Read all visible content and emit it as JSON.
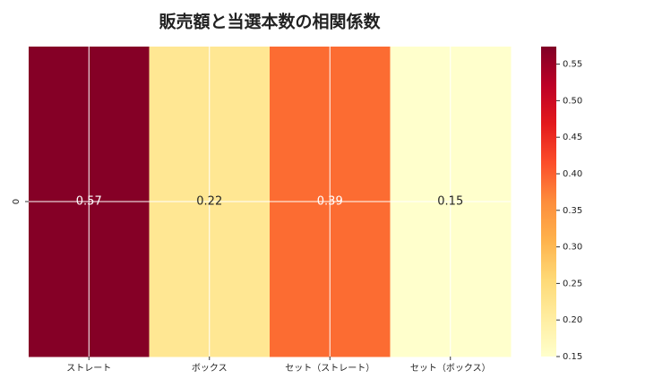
{
  "chart_data": {
    "type": "heatmap",
    "title": "販売額と当選本数の相関係数",
    "categories": [
      "ストレート",
      "ボックス",
      "セット（ストレート）",
      "セット（ボックス）"
    ],
    "y_categories": [
      "0"
    ],
    "values": [
      [
        0.57,
        0.22,
        0.39,
        0.15
      ]
    ],
    "colormap": [
      "#ffffcc",
      "#ffeda0",
      "#fed976",
      "#feb24c",
      "#fd8d3c",
      "#fc4e2a",
      "#e31a1c",
      "#bd0026",
      "#800026"
    ],
    "clim": [
      0.15,
      0.574
    ],
    "cticks": [
      0.15,
      {
        "value": 0.2,
        "label": "0.20"
      },
      0.25,
      {
        "value": 0.3,
        "label": "0.30"
      },
      0.35,
      {
        "value": 0.4,
        "label": "0.40"
      },
      0.45,
      {
        "value": 0.5,
        "label": "0.50"
      },
      0.55
    ],
    "grid": true
  }
}
